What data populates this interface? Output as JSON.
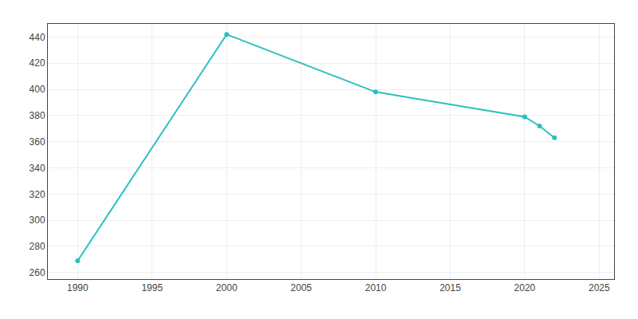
{
  "chart_data": {
    "type": "line",
    "x": [
      1990,
      2000,
      2010,
      2020,
      2021,
      2022
    ],
    "values": [
      269,
      442,
      398,
      379,
      372,
      363
    ],
    "color": "#2bbfbf",
    "marker": "circle",
    "line_style": "solid",
    "xlim": [
      1988,
      2026
    ],
    "ylim": [
      255,
      450
    ],
    "xticks": [
      1990,
      1995,
      2000,
      2005,
      2010,
      2015,
      2020,
      2025
    ],
    "yticks": [
      260,
      280,
      300,
      320,
      340,
      360,
      380,
      400,
      420,
      440
    ],
    "grid": true
  }
}
